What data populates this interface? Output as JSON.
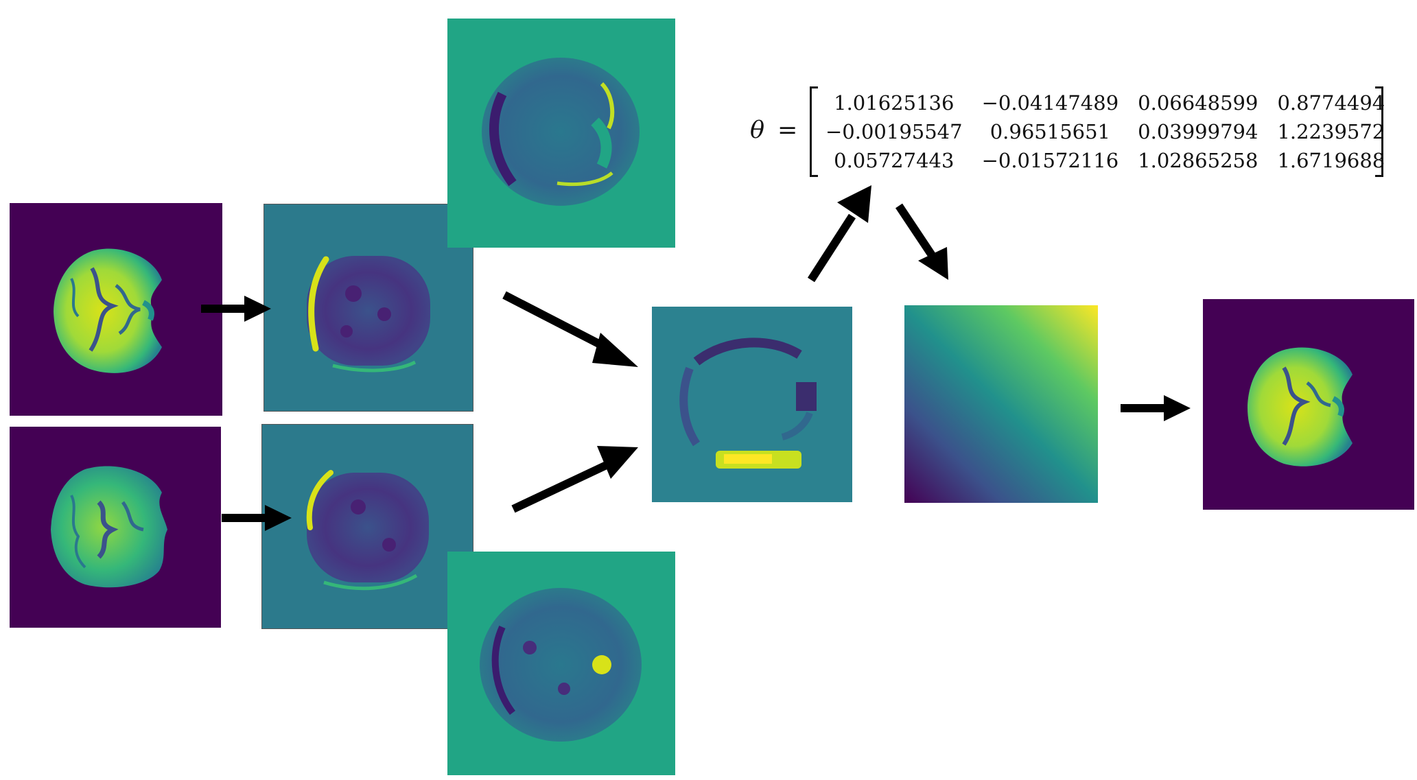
{
  "theta": {
    "symbol": "θ",
    "equals": "=",
    "matrix": [
      [
        "1.01625136",
        "−0.04147489",
        "0.06648599",
        "0.8774494"
      ],
      [
        "−0.00195547",
        "0.96515651",
        "0.03999794",
        "1.2239572"
      ],
      [
        "0.05727443",
        "−0.01572116",
        "1.02865258",
        "1.6719688"
      ]
    ]
  },
  "colors": {
    "viridis_dark": "#440154",
    "viridis_teal": "#21a585",
    "viridis_mid": "#2c7a8c",
    "viridis_blue": "#3b528b",
    "viridis_green": "#5ec962",
    "viridis_yellow": "#fde725",
    "arrow": "#000000"
  },
  "panels": [
    {
      "name": "input-image-1",
      "content": "mri-brain-slice"
    },
    {
      "name": "input-image-2",
      "content": "mri-brain-slice"
    },
    {
      "name": "feature-map-1",
      "content": "cnn-feature-map"
    },
    {
      "name": "feature-map-2",
      "content": "cnn-feature-map"
    },
    {
      "name": "feature-map-top",
      "content": "cnn-feature-map"
    },
    {
      "name": "feature-map-bottom",
      "content": "cnn-feature-map"
    },
    {
      "name": "fused-feature-map",
      "content": "cnn-feature-map"
    },
    {
      "name": "sampling-grid",
      "content": "gradient-grid"
    },
    {
      "name": "output-image",
      "content": "registered-mri-slice"
    }
  ]
}
